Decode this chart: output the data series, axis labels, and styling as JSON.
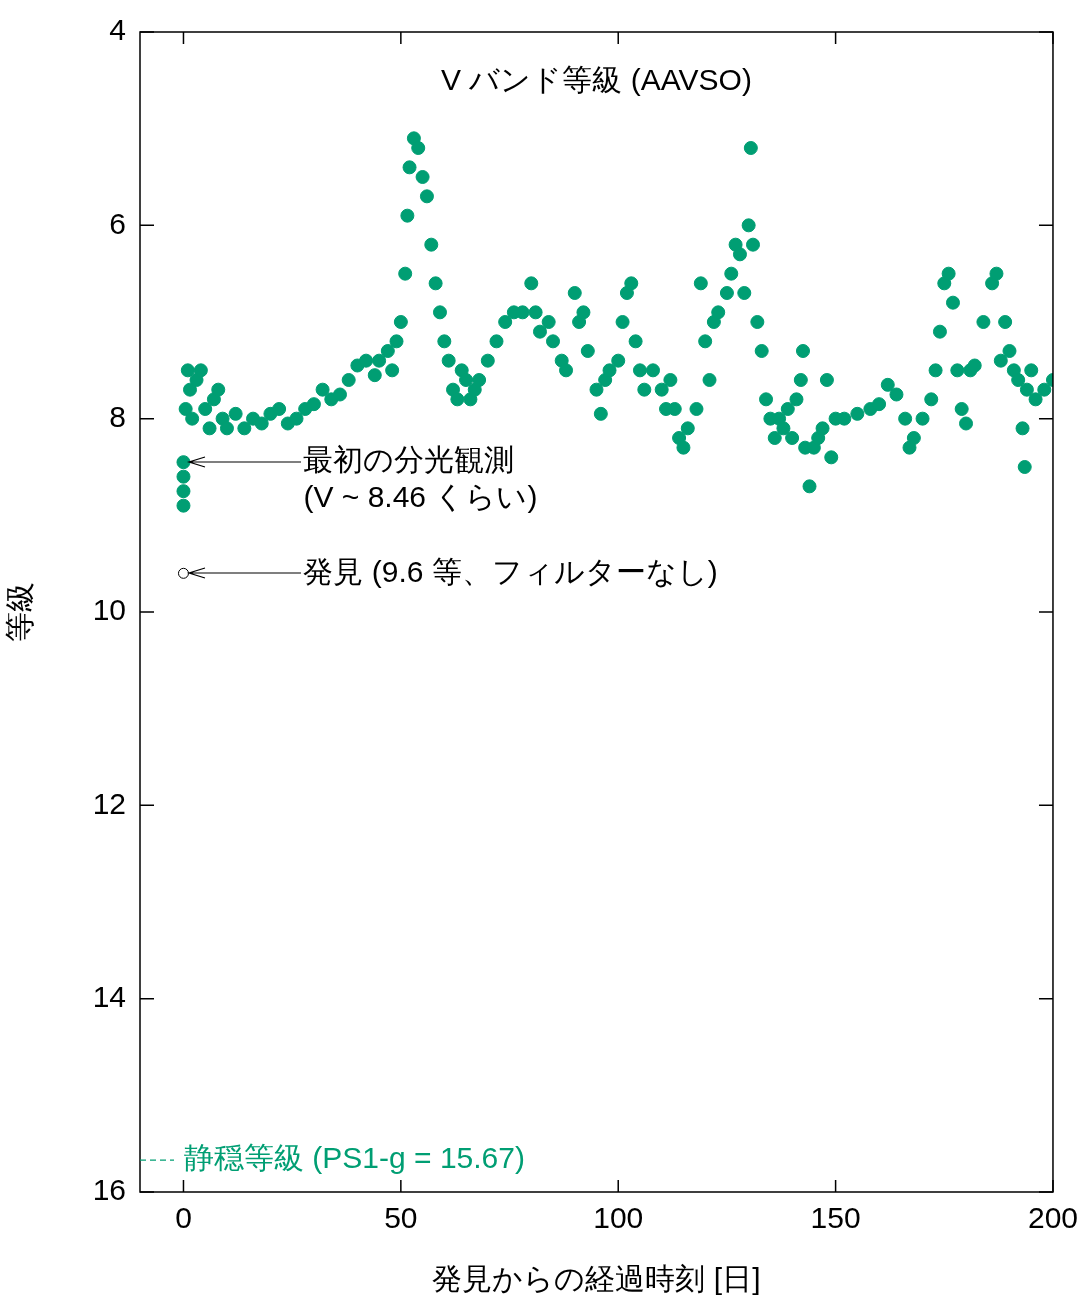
{
  "chart_data": {
    "type": "scatter",
    "title": "V バンド等級 (AAVSO)",
    "xlabel": "発見からの経過時刻 [日]",
    "ylabel": "等級",
    "xlim": [
      -10,
      200
    ],
    "xticks": [
      0,
      50,
      100,
      150,
      200
    ],
    "ylim": [
      16,
      4
    ],
    "yticks": [
      4,
      6,
      8,
      10,
      12,
      14,
      16
    ],
    "grid": false,
    "legend": false,
    "marker": "circle",
    "series": [
      {
        "color": "#009e73",
        "x": [
          0,
          0,
          0,
          0
        ],
        "values": [
          8.45,
          8.6,
          8.75,
          8.9
        ]
      },
      {
        "color": "#000000",
        "x": [
          0
        ],
        "values": [
          9.6
        ]
      },
      {
        "color": "#009e73",
        "x": [
          0.5,
          1,
          1.5,
          2,
          3,
          4,
          5,
          6,
          7,
          8,
          9,
          10,
          12,
          14,
          16,
          18,
          20,
          22,
          24,
          26,
          28,
          30,
          32,
          34,
          36,
          38,
          40,
          42,
          44,
          45,
          47,
          48,
          49,
          50,
          51,
          51.5,
          52,
          53,
          54,
          55,
          56,
          57,
          58,
          59,
          60,
          61,
          62,
          63,
          64,
          65,
          66,
          67,
          68,
          70,
          72,
          74,
          76,
          78,
          80,
          81,
          82,
          84,
          85,
          87,
          88,
          90,
          91,
          92,
          93,
          95,
          96,
          97,
          98,
          100,
          101,
          102,
          103,
          104,
          105,
          106,
          108,
          110,
          111,
          112,
          113,
          114,
          115,
          116,
          118,
          119,
          120,
          121,
          122,
          123,
          125,
          126,
          127,
          128,
          129,
          130,
          130.5,
          131,
          132,
          133,
          134,
          135,
          136,
          137,
          138,
          139,
          140,
          141,
          142,
          142.5,
          143,
          144,
          145,
          146,
          147,
          148,
          149,
          150,
          152,
          155,
          158,
          160,
          162,
          164,
          166,
          167,
          168,
          170,
          172,
          173,
          174,
          175,
          176,
          177,
          178,
          179,
          180,
          181,
          182,
          184,
          186,
          187,
          188,
          189,
          190,
          191,
          192,
          193,
          193.5,
          194,
          195,
          196,
          198,
          200
        ],
        "values": [
          7.9,
          7.5,
          7.7,
          8.0,
          7.6,
          7.5,
          7.9,
          8.1,
          7.8,
          7.7,
          8.0,
          8.1,
          7.95,
          8.1,
          8.0,
          8.05,
          7.95,
          7.9,
          8.05,
          8.0,
          7.9,
          7.85,
          7.7,
          7.8,
          7.75,
          7.6,
          7.45,
          7.4,
          7.55,
          7.4,
          7.3,
          7.5,
          7.2,
          7.0,
          6.5,
          5.9,
          5.4,
          5.1,
          5.2,
          5.5,
          5.7,
          6.2,
          6.6,
          6.9,
          7.2,
          7.4,
          7.7,
          7.8,
          7.5,
          7.6,
          7.8,
          7.7,
          7.6,
          7.4,
          7.2,
          7.0,
          6.9,
          6.9,
          6.6,
          6.9,
          7.1,
          7.0,
          7.2,
          7.4,
          7.5,
          6.7,
          7.0,
          6.9,
          7.3,
          7.7,
          7.95,
          7.6,
          7.5,
          7.4,
          7.0,
          6.7,
          6.6,
          7.2,
          7.5,
          7.7,
          7.5,
          7.7,
          7.9,
          7.6,
          7.9,
          8.2,
          8.3,
          8.1,
          7.9,
          6.6,
          7.2,
          7.6,
          7.0,
          6.9,
          6.7,
          6.5,
          6.2,
          6.3,
          6.7,
          6.0,
          5.2,
          6.2,
          7.0,
          7.3,
          7.8,
          8.0,
          8.2,
          8.0,
          8.1,
          7.9,
          8.2,
          7.8,
          7.6,
          7.3,
          8.3,
          8.7,
          8.3,
          8.2,
          8.1,
          7.6,
          8.4,
          8.0,
          8.0,
          7.95,
          7.9,
          7.85,
          7.65,
          7.75,
          8.0,
          8.3,
          8.2,
          8.0,
          7.8,
          7.5,
          7.1,
          6.6,
          6.5,
          6.8,
          7.5,
          7.9,
          8.05,
          7.5,
          7.45,
          7.0,
          6.6,
          6.5,
          7.4,
          7.0,
          7.3,
          7.5,
          7.6,
          8.1,
          8.5,
          7.7,
          7.5,
          7.8,
          7.7,
          7.6
        ]
      }
    ],
    "ref_lines": [
      {
        "axis": "y",
        "value": 15.67,
        "label": "静穏等級 (PS1-g = 15.67)",
        "color": "#009e73",
        "line_style": "dashed"
      }
    ],
    "annotations": [
      "最初の分光観測\n(V ~ 8.46 くらい)",
      "発見 (9.6 等、フィルターなし)"
    ]
  }
}
